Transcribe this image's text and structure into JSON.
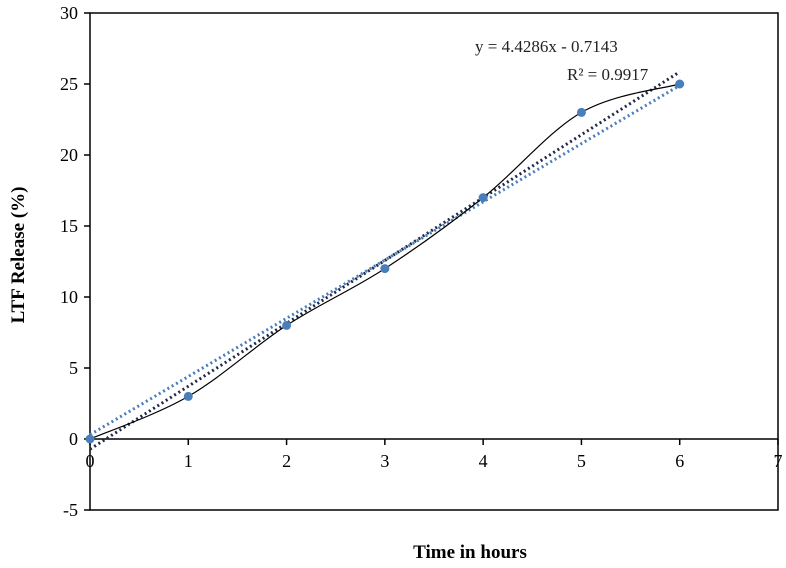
{
  "chart_data": {
    "type": "scatter",
    "title": "",
    "xlabel": "Time in hours",
    "ylabel": "LTF Release (%)",
    "xlim": [
      0,
      7
    ],
    "ylim": [
      -5,
      30
    ],
    "xticks": [
      0,
      1,
      2,
      3,
      4,
      5,
      6,
      7
    ],
    "yticks": [
      -5,
      0,
      5,
      10,
      15,
      20,
      25,
      30
    ],
    "grid": false,
    "legend": "none",
    "series": [
      {
        "x": [
          0,
          1,
          2,
          3,
          4,
          5,
          6
        ],
        "y": [
          0,
          3,
          8,
          12,
          17,
          23,
          25
        ],
        "marker_color": "#4a7ebb",
        "smooth_line": true
      }
    ],
    "trendlines": [
      {
        "kind": "linear",
        "slope": 4.4286,
        "intercept": -0.7143,
        "color": "#1f2a44",
        "style": "dotted"
      },
      {
        "kind": "linear",
        "slope": 4.1,
        "intercept": 0.3,
        "color": "#4a7ebb",
        "style": "dotted"
      }
    ],
    "annotations": {
      "equation": "y = 4.4286x - 0.7143",
      "r_squared": "R² = 0.9917"
    }
  }
}
